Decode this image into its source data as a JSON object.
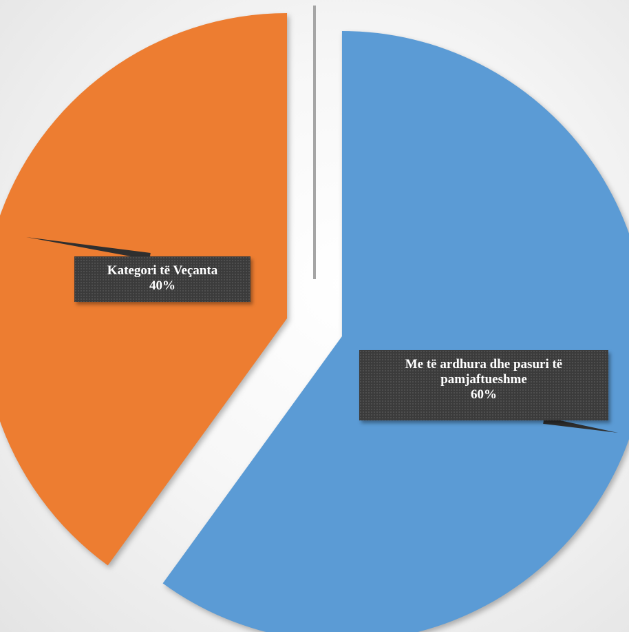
{
  "chart_data": {
    "type": "pie",
    "slices": [
      {
        "label": "Me të ardhura dhe pasuri të pamjaftueshme",
        "label_lines": [
          "Me të ardhura dhe pasuri të",
          "pamjaftueshme"
        ],
        "value": 60,
        "value_text": "60%",
        "color": "#5b9bd5"
      },
      {
        "label": "Kategori të Veçanta",
        "label_lines": [
          "Kategori të Veçanta"
        ],
        "value": 40,
        "value_text": "40%",
        "color": "#ed7d31"
      },
      {
        "label": "",
        "value": 0,
        "color": "#a5a5a5"
      }
    ],
    "exploded": true,
    "legend": "none",
    "data_labels": "callout"
  }
}
